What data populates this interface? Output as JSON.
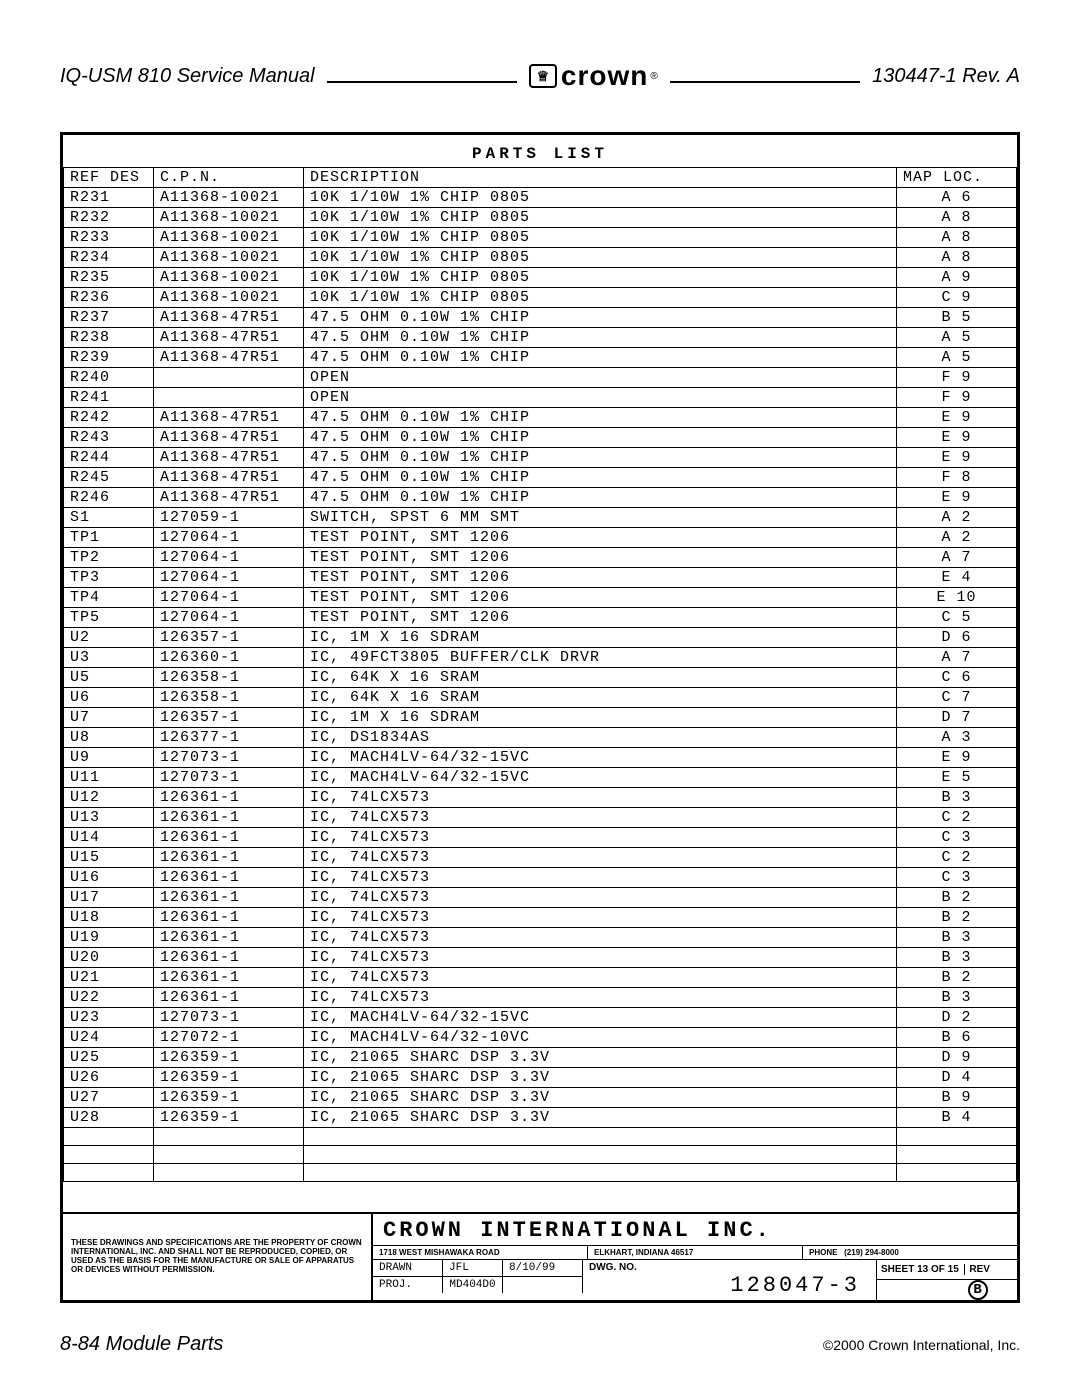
{
  "header": {
    "left": "IQ-USM 810 Service Manual",
    "logo_text": "crown",
    "right": "130447-1 Rev. A"
  },
  "parts_list": {
    "title": "PARTS LIST",
    "columns": [
      "REF DES",
      "C.P.N.",
      "DESCRIPTION",
      "MAP LOC."
    ],
    "rows": [
      [
        "R231",
        "A11368-10021",
        "10K 1/10W 1% CHIP 0805",
        "A 6"
      ],
      [
        "R232",
        "A11368-10021",
        "10K 1/10W 1% CHIP 0805",
        "A 8"
      ],
      [
        "R233",
        "A11368-10021",
        "10K 1/10W 1% CHIP 0805",
        "A 8"
      ],
      [
        "R234",
        "A11368-10021",
        "10K 1/10W 1% CHIP 0805",
        "A 8"
      ],
      [
        "R235",
        "A11368-10021",
        "10K 1/10W 1% CHIP 0805",
        "A 9"
      ],
      [
        "R236",
        "A11368-10021",
        "10K 1/10W 1% CHIP 0805",
        "C 9"
      ],
      [
        "R237",
        "A11368-47R51",
        "47.5 OHM 0.10W 1% CHIP",
        "B 5"
      ],
      [
        "R238",
        "A11368-47R51",
        "47.5 OHM 0.10W 1% CHIP",
        "A 5"
      ],
      [
        "R239",
        "A11368-47R51",
        "47.5 OHM 0.10W 1% CHIP",
        "A 5"
      ],
      [
        "R240",
        "",
        "OPEN",
        "F 9"
      ],
      [
        "R241",
        "",
        "OPEN",
        "F 9"
      ],
      [
        "R242",
        "A11368-47R51",
        "47.5 OHM 0.10W 1% CHIP",
        "E 9"
      ],
      [
        "R243",
        "A11368-47R51",
        "47.5 OHM 0.10W 1% CHIP",
        "E 9"
      ],
      [
        "R244",
        "A11368-47R51",
        "47.5 OHM 0.10W 1% CHIP",
        "E 9"
      ],
      [
        "R245",
        "A11368-47R51",
        "47.5 OHM 0.10W 1% CHIP",
        "F 8"
      ],
      [
        "R246",
        "A11368-47R51",
        "47.5 OHM 0.10W 1% CHIP",
        "E 9"
      ],
      [
        "S1",
        "127059-1",
        "SWITCH, SPST 6 MM SMT",
        "A 2"
      ],
      [
        "TP1",
        "127064-1",
        "TEST POINT, SMT 1206",
        "A 2"
      ],
      [
        "TP2",
        "127064-1",
        "TEST POINT, SMT 1206",
        "A 7"
      ],
      [
        "TP3",
        "127064-1",
        "TEST POINT, SMT 1206",
        "E 4"
      ],
      [
        "TP4",
        "127064-1",
        "TEST POINT, SMT 1206",
        "E 10"
      ],
      [
        "TP5",
        "127064-1",
        "TEST POINT, SMT 1206",
        "C 5"
      ],
      [
        "U2",
        "126357-1",
        "IC, 1M X 16 SDRAM",
        "D 6"
      ],
      [
        "U3",
        "126360-1",
        "IC, 49FCT3805 BUFFER/CLK DRVR",
        "A 7"
      ],
      [
        "U5",
        "126358-1",
        "IC, 64K X 16 SRAM",
        "C 6"
      ],
      [
        "U6",
        "126358-1",
        "IC, 64K X 16 SRAM",
        "C 7"
      ],
      [
        "U7",
        "126357-1",
        "IC, 1M X 16 SDRAM",
        "D 7"
      ],
      [
        "U8",
        "126377-1",
        "IC, DS1834AS",
        "A 3"
      ],
      [
        "U9",
        "127073-1",
        "IC, MACH4LV-64/32-15VC",
        "E 9"
      ],
      [
        "U11",
        "127073-1",
        "IC, MACH4LV-64/32-15VC",
        "E 5"
      ],
      [
        "U12",
        "126361-1",
        "IC, 74LCX573",
        "B 3"
      ],
      [
        "U13",
        "126361-1",
        "IC, 74LCX573",
        "C 2"
      ],
      [
        "U14",
        "126361-1",
        "IC, 74LCX573",
        "C 3"
      ],
      [
        "U15",
        "126361-1",
        "IC, 74LCX573",
        "C 2"
      ],
      [
        "U16",
        "126361-1",
        "IC, 74LCX573",
        "C 3"
      ],
      [
        "U17",
        "126361-1",
        "IC, 74LCX573",
        "B 2"
      ],
      [
        "U18",
        "126361-1",
        "IC, 74LCX573",
        "B 2"
      ],
      [
        "U19",
        "126361-1",
        "IC, 74LCX573",
        "B 3"
      ],
      [
        "U20",
        "126361-1",
        "IC, 74LCX573",
        "B 3"
      ],
      [
        "U21",
        "126361-1",
        "IC, 74LCX573",
        "B 2"
      ],
      [
        "U22",
        "126361-1",
        "IC, 74LCX573",
        "B 3"
      ],
      [
        "U23",
        "127073-1",
        "IC, MACH4LV-64/32-15VC",
        "D 2"
      ],
      [
        "U24",
        "127072-1",
        "IC, MACH4LV-64/32-10VC",
        "B 6"
      ],
      [
        "U25",
        "126359-1",
        "IC, 21065 SHARC DSP 3.3V",
        "D 9"
      ],
      [
        "U26",
        "126359-1",
        "IC, 21065 SHARC DSP 3.3V",
        "D 4"
      ],
      [
        "U27",
        "126359-1",
        "IC, 21065 SHARC DSP 3.3V",
        "B 9"
      ],
      [
        "U28",
        "126359-1",
        "IC, 21065 SHARC DSP 3.3V",
        "B 4"
      ],
      [
        "",
        "",
        "",
        ""
      ],
      [
        "",
        "",
        "",
        ""
      ],
      [
        "",
        "",
        "",
        ""
      ]
    ]
  },
  "title_block": {
    "disclaimer": "THESE DRAWINGS AND SPECIFICATIONS ARE THE PROPERTY OF CROWN INTERNATIONAL, INC. AND SHALL NOT BE REPRODUCED, COPIED, OR USED AS THE BASIS FOR THE MANUFACTURE OR SALE OF APPARATUS OR DEVICES WITHOUT PERMISSION.",
    "company": "CROWN INTERNATIONAL INC.",
    "addr1": "1718 WEST MISHAWAKA ROAD",
    "addr2": "ELKHART, INDIANA 46517",
    "addr3_label": "PHONE",
    "addr3_val": "(219) 294-8000",
    "drawn_label": "DRAWN",
    "drawn_by": "JFL",
    "drawn_date": "8/10/99",
    "proj_label": "PROJ.",
    "proj_val": "MD404D0",
    "dwg_label": "DWG. NO.",
    "dwg_num": "128047-3",
    "sheet": "SHEET 13 OF 15",
    "rev_label": "REV",
    "rev_val": "B"
  },
  "footer": {
    "left": "8-84 Module Parts",
    "right": "©2000 Crown International, Inc."
  }
}
